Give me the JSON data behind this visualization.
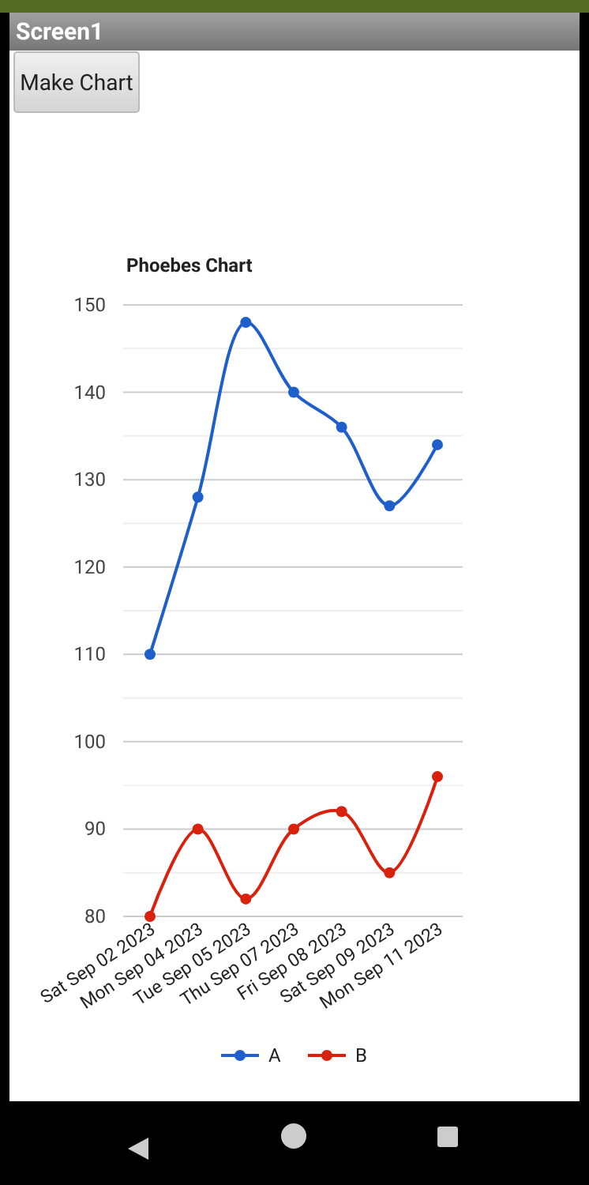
{
  "chart_data": {
    "type": "line",
    "title": "Phoebes Chart",
    "categories": [
      "Sat Sep 02 2023",
      "Mon Sep 04 2023",
      "Tue Sep 05 2023",
      "Thu Sep 07 2023",
      "Fri Sep 08 2023",
      "Sat Sep 09 2023",
      "Mon Sep 11 2023"
    ],
    "series": [
      {
        "name": "A",
        "color": "#1f5fcc",
        "values": [
          110,
          128,
          148,
          140,
          136,
          127,
          134
        ]
      },
      {
        "name": "B",
        "color": "#d8220e",
        "values": [
          80,
          90,
          82,
          90,
          92,
          85,
          96
        ]
      }
    ],
    "ylim": [
      80,
      150
    ],
    "yticks": [
      80,
      {
        "value": 85,
        "label": null
      },
      90,
      {
        "value": 95,
        "label": null
      },
      100,
      {
        "value": 105,
        "label": null
      },
      110,
      {
        "value": 115,
        "label": null
      },
      120,
      {
        "value": 125,
        "label": null
      },
      130,
      {
        "value": 135,
        "label": null
      },
      140,
      {
        "value": 145,
        "label": null
      },
      150
    ],
    "grid": "y",
    "legend": "bottom",
    "marker": "circle",
    "line_style": "solid",
    "annotations": [
      "Screen1",
      "Make Chart"
    ]
  }
}
